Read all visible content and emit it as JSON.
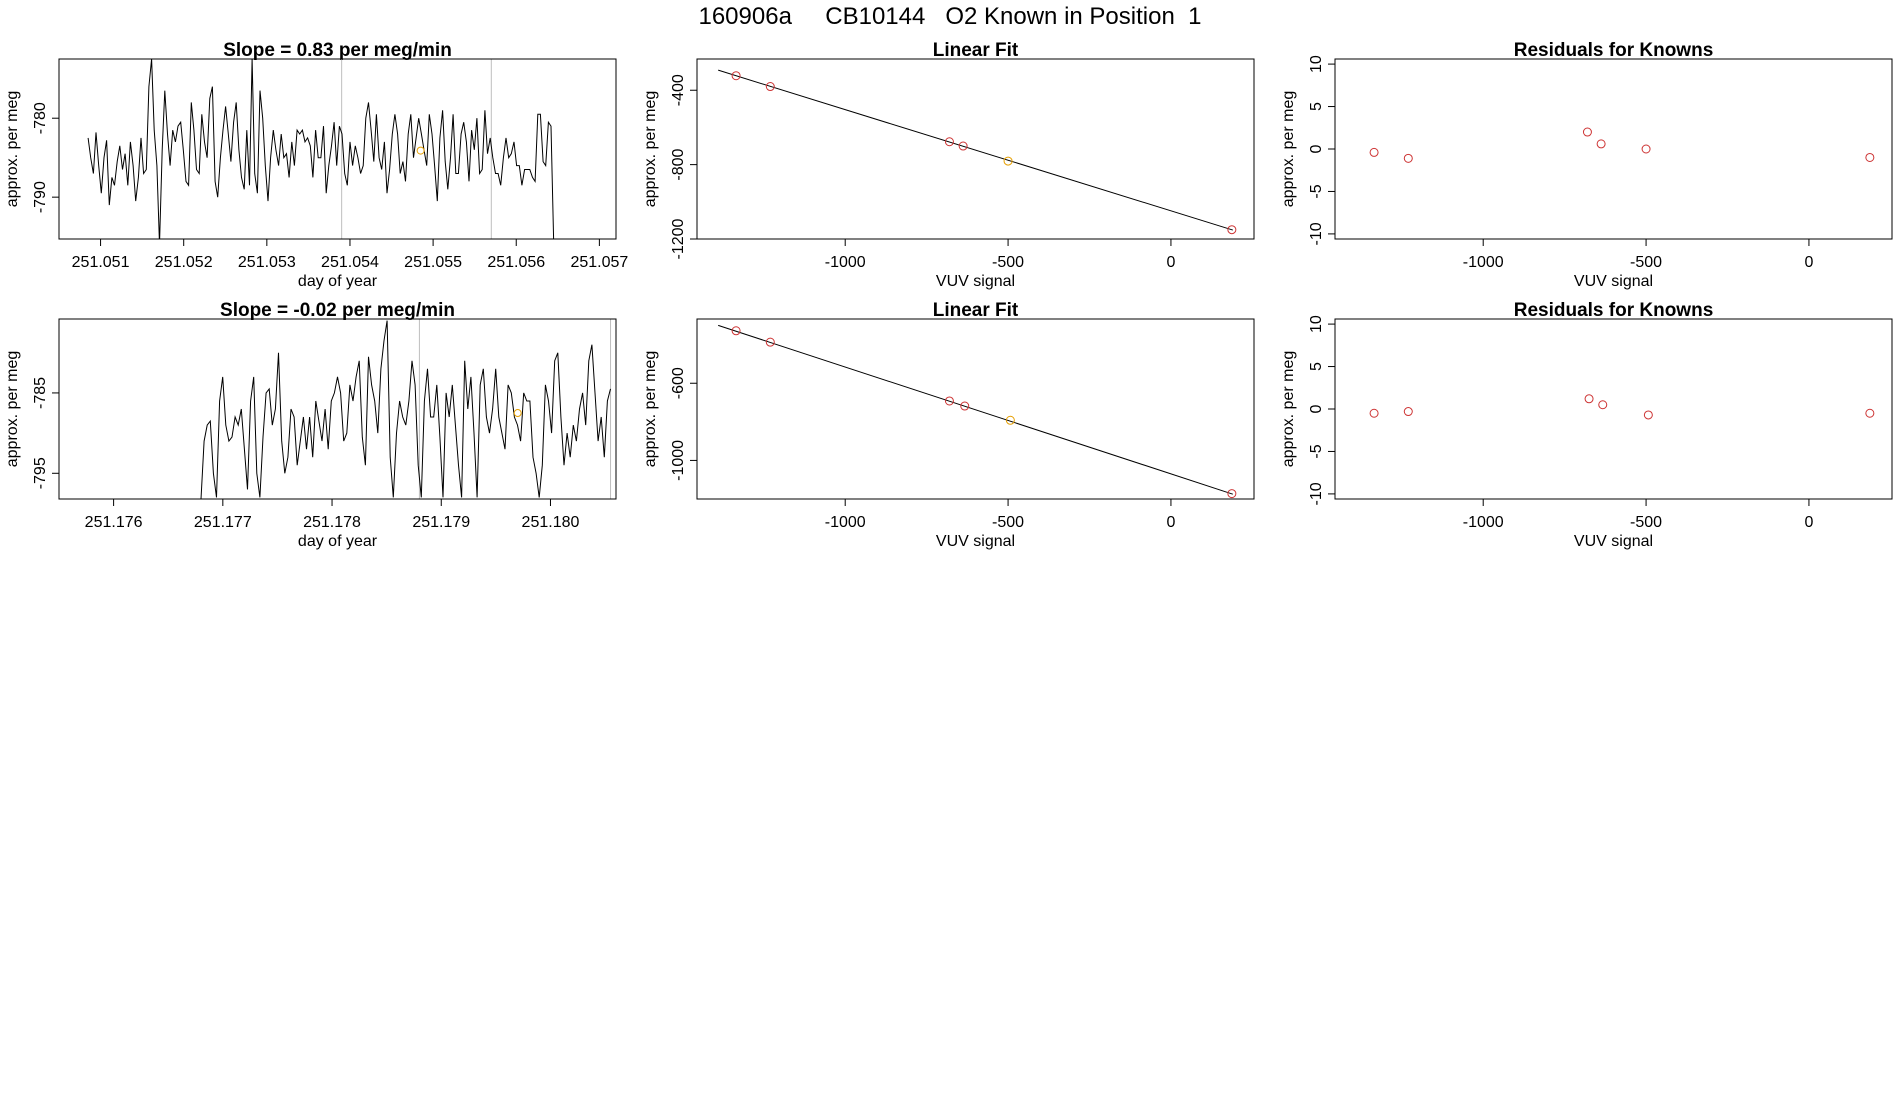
{
  "header": {
    "title": "160906a     CB10144   O2 Known in Position  1"
  },
  "colors": {
    "line": "#000000",
    "box": "#000000",
    "known_point": "#cd3333",
    "sample_point": "#e69f00",
    "vline": "#bebebe"
  },
  "chart_data": [
    {
      "id": "ts1",
      "type": "line",
      "title": "Slope =  0.83  per meg/min",
      "xlabel": "day of year",
      "ylabel": "approx. per meg",
      "xlim": [
        251.0505,
        251.0572
      ],
      "ylim": [
        -795.3,
        -772.5
      ],
      "xticks": [
        251.051,
        251.052,
        251.053,
        251.054,
        251.055,
        251.056,
        251.057
      ],
      "xtick_labels": [
        "251.051",
        "251.052",
        "251.053",
        "251.054",
        "251.055",
        "251.056",
        "251.057"
      ],
      "yticks": [
        -790,
        -780
      ],
      "ytick_labels": [
        "-790",
        "-780"
      ],
      "x_range": [
        251.05085,
        251.05645
      ],
      "y_values": [
        -782.5,
        -785,
        -787,
        -781.8,
        -786,
        -789.5,
        -785,
        -782.8,
        -791,
        -787.5,
        -788.5,
        -785.5,
        -783.5,
        -786.5,
        -784.5,
        -788.5,
        -783,
        -786,
        -790.5,
        -787.5,
        -782.5,
        -787,
        -786.5,
        -776,
        -772.5,
        -781.5,
        -786,
        -796,
        -784,
        -776.5,
        -782,
        -786,
        -781.5,
        -783,
        -781,
        -780.5,
        -784,
        -788,
        -788.5,
        -778,
        -781.5,
        -786.5,
        -787,
        -779.5,
        -783,
        -785,
        -777.5,
        -776,
        -788,
        -790,
        -785,
        -781.5,
        -778.5,
        -782,
        -785.5,
        -780.5,
        -778,
        -784,
        -787.5,
        -789,
        -781.5,
        -788.5,
        -772.5,
        -787,
        -789.5,
        -776.5,
        -780,
        -786,
        -790.5,
        -785,
        -781.5,
        -784,
        -786,
        -782,
        -785,
        -784.5,
        -787.5,
        -783,
        -786,
        -781.5,
        -782,
        -781.5,
        -783,
        -782.5,
        -783.5,
        -787.5,
        -781.5,
        -785,
        -785,
        -781,
        -789.5,
        -786,
        -783.5,
        -780.5,
        -786,
        -781,
        -782,
        -787,
        -788.5,
        -783,
        -786,
        -783.5,
        -785,
        -787,
        -786,
        -780,
        -778,
        -781.5,
        -785.5,
        -779.5,
        -785,
        -786.5,
        -783,
        -789.5,
        -786.5,
        -782,
        -779.5,
        -782,
        -787,
        -785.5,
        -788,
        -782,
        -779.5,
        -785,
        -782.5,
        -780,
        -782,
        -784,
        -786,
        -779.5,
        -782,
        -786,
        -790.5,
        -782.5,
        -779,
        -785.5,
        -789,
        -785,
        -779.5,
        -787,
        -787,
        -782,
        -780.5,
        -783,
        -788,
        -781.5,
        -784,
        -780,
        -787,
        -786.5,
        -779,
        -784.5,
        -782.5,
        -785,
        -787,
        -787,
        -788.5,
        -785,
        -782.5,
        -785,
        -784.5,
        -783,
        -786,
        -786,
        -788.5,
        -786.5,
        -786.5,
        -786.5,
        -787.5,
        -788,
        -779.5,
        -779.5,
        -785.5,
        -786,
        -780.5,
        -781,
        -795.3
      ],
      "vlines": [
        251.0539,
        251.0557
      ],
      "marker": {
        "x": 251.05485,
        "y": -784.1
      }
    },
    {
      "id": "fit1",
      "type": "scatter",
      "title": "Linear Fit",
      "xlabel": "VUV signal",
      "ylabel": "approx. per meg",
      "xlim": [
        -1455,
        255
      ],
      "ylim": [
        -1200,
        -232
      ],
      "xticks": [
        -1000,
        -500,
        0
      ],
      "xtick_labels": [
        "-1000",
        "-500",
        "0"
      ],
      "yticks": [
        -1200,
        -800,
        -400
      ],
      "ytick_labels": [
        "-1200",
        "-800",
        "-400"
      ],
      "points": [
        {
          "x": -1335,
          "y": -322,
          "kind": "known"
        },
        {
          "x": -1230,
          "y": -380,
          "kind": "known"
        },
        {
          "x": -680,
          "y": -677,
          "kind": "known"
        },
        {
          "x": -638,
          "y": -700,
          "kind": "known"
        },
        {
          "x": -500,
          "y": -781,
          "kind": "sample"
        },
        {
          "x": 187,
          "y": -1150,
          "kind": "known"
        }
      ],
      "fit_line": {
        "x": [
          -1390,
          190
        ],
        "y": [
          -292,
          -1152
        ]
      }
    },
    {
      "id": "res1",
      "type": "scatter",
      "title": "Residuals for Knowns",
      "xlabel": "VUV signal",
      "ylabel": "approx. per meg",
      "xlim": [
        -1455,
        255
      ],
      "ylim": [
        -10.6,
        10.6
      ],
      "xticks": [
        -1000,
        -500,
        0
      ],
      "xtick_labels": [
        "-1000",
        "-500",
        "0"
      ],
      "yticks": [
        -10,
        -5,
        0,
        5,
        10
      ],
      "ytick_labels": [
        "-10",
        "-5",
        "0",
        "5",
        "10"
      ],
      "points": [
        {
          "x": -1335,
          "y": -0.4
        },
        {
          "x": -1230,
          "y": -1.1
        },
        {
          "x": -680,
          "y": 2.0
        },
        {
          "x": -638,
          "y": 0.6
        },
        {
          "x": -500,
          "y": 0.0
        },
        {
          "x": 187,
          "y": -1.0
        }
      ]
    },
    {
      "id": "ts2",
      "type": "line",
      "title": "Slope =  -0.02  per meg/min",
      "xlabel": "day of year",
      "ylabel": "approx. per meg",
      "xlim": [
        251.1755,
        251.1806
      ],
      "ylim": [
        -798.2,
        -775.8
      ],
      "xticks": [
        251.176,
        251.177,
        251.178,
        251.179,
        251.18
      ],
      "xtick_labels": [
        "251.176",
        "251.177",
        "251.178",
        "251.179",
        "251.180"
      ],
      "yticks": [
        -795,
        -785
      ],
      "ytick_labels": [
        "-795",
        "-785"
      ],
      "x_range": [
        251.1768,
        251.18055
      ],
      "y_values": [
        -798.2,
        -791,
        -789,
        -788.5,
        -795,
        -798,
        -786,
        -783,
        -789,
        -791,
        -790.5,
        -788,
        -789,
        -787,
        -792,
        -797,
        -786,
        -783,
        -795,
        -798,
        -790.5,
        -785,
        -784.5,
        -789,
        -787,
        -780,
        -791,
        -795,
        -793,
        -787,
        -788,
        -794,
        -791,
        -788,
        -792,
        -788,
        -793,
        -786,
        -788.5,
        -791,
        -787,
        -792,
        -786,
        -785,
        -783,
        -785,
        -791,
        -790,
        -784,
        -786,
        -783,
        -781,
        -790.5,
        -794,
        -780.5,
        -784,
        -786,
        -790,
        -782,
        -778.5,
        -776,
        -793,
        -798,
        -790,
        -786,
        -788,
        -789,
        -786,
        -781,
        -784,
        -794,
        -798,
        -786,
        -782,
        -788,
        -788,
        -784,
        -790.5,
        -798,
        -785,
        -788,
        -784,
        -789,
        -794,
        -798,
        -781,
        -787,
        -783,
        -790,
        -798,
        -784,
        -782,
        -788,
        -790,
        -787,
        -782,
        -788,
        -790,
        -792,
        -784,
        -785,
        -788,
        -789,
        -791,
        -785,
        -786,
        -786,
        -793,
        -795,
        -798,
        -794,
        -784,
        -786,
        -790,
        -781,
        -780,
        -788,
        -794,
        -790,
        -793,
        -789,
        -791,
        -787,
        -785,
        -789,
        -781,
        -779,
        -785,
        -791,
        -788,
        -793,
        -786,
        -784.5
      ],
      "vlines": [
        251.1788,
        251.18055
      ],
      "marker": {
        "x": 251.1797,
        "y": -787.5
      }
    },
    {
      "id": "fit2",
      "type": "scatter",
      "title": "Linear Fit",
      "xlabel": "VUV signal",
      "ylabel": "approx. per meg",
      "xlim": [
        -1455,
        255
      ],
      "ylim": [
        -1200,
        -267
      ],
      "xticks": [
        -1000,
        -500,
        0
      ],
      "xtick_labels": [
        "-1000",
        "-500",
        "0"
      ],
      "yticks": [
        -1000,
        -600
      ],
      "ytick_labels": [
        "-1000",
        "-600"
      ],
      "points": [
        {
          "x": -1335,
          "y": -328
        },
        {
          "x": -1230,
          "y": -387
        },
        {
          "x": -680,
          "y": -692,
          "kind": "known"
        },
        {
          "x": -633,
          "y": -718,
          "kind": "known"
        },
        {
          "x": -493,
          "y": -792,
          "kind": "sample"
        },
        {
          "x": 187,
          "y": -1172,
          "kind": "known"
        }
      ],
      "fit_line": {
        "x": [
          -1390,
          190
        ],
        "y": [
          -300,
          -1175
        ]
      }
    },
    {
      "id": "res2",
      "type": "scatter",
      "title": "Residuals for Knowns",
      "xlabel": "VUV signal",
      "ylabel": "approx. per meg",
      "xlim": [
        -1455,
        255
      ],
      "ylim": [
        -10.6,
        10.6
      ],
      "xticks": [
        -1000,
        -500,
        0
      ],
      "xtick_labels": [
        "-1000",
        "-500",
        "0"
      ],
      "yticks": [
        -10,
        -5,
        0,
        5,
        10
      ],
      "ytick_labels": [
        "-10",
        "-5",
        "0",
        "5",
        "10"
      ],
      "points": [
        {
          "x": -1335,
          "y": -0.5
        },
        {
          "x": -1230,
          "y": -0.3
        },
        {
          "x": -675,
          "y": 1.2
        },
        {
          "x": -633,
          "y": 0.5
        },
        {
          "x": -493,
          "y": -0.7
        },
        {
          "x": 187,
          "y": -0.5
        }
      ]
    }
  ]
}
